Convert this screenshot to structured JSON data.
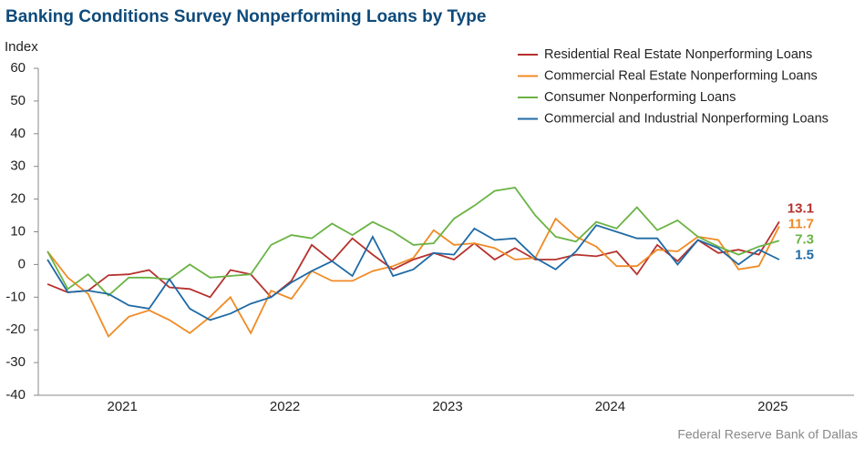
{
  "chart_data": {
    "type": "line",
    "title": "Banking Conditions Survey Nonperforming Loans by Type",
    "y_label": "Index",
    "source": "Federal Reserve Bank of Dallas",
    "xlim": [
      2021,
      2026
    ],
    "xticks": [
      {
        "value": 2021.5,
        "label": "2021"
      },
      {
        "value": 2022.5,
        "label": "2022"
      },
      {
        "value": 2023.5,
        "label": "2023"
      },
      {
        "value": 2024.5,
        "label": "2024"
      },
      {
        "value": 2025.5,
        "label": "2025"
      }
    ],
    "ylim": [
      -40,
      60
    ],
    "yticks": [
      -40,
      -30,
      -20,
      -10,
      0,
      10,
      20,
      30,
      40,
      50,
      60
    ],
    "legend": "top-right",
    "x": [
      2021.04,
      2021.165,
      2021.29,
      2021.415,
      2021.54,
      2021.665,
      2021.79,
      2021.915,
      2022.04,
      2022.165,
      2022.29,
      2022.415,
      2022.54,
      2022.665,
      2022.79,
      2022.915,
      2023.04,
      2023.165,
      2023.29,
      2023.415,
      2023.54,
      2023.665,
      2023.79,
      2023.915,
      2024.04,
      2024.165,
      2024.29,
      2024.415,
      2024.54,
      2024.665,
      2024.79,
      2024.915,
      2025.04,
      2025.165,
      2025.29,
      2025.415,
      2025.54
    ],
    "series": [
      {
        "name": "Residential Real Estate Nonperforming Loans",
        "color": "#b5312c",
        "values": [
          -6,
          -8.5,
          -8,
          -3.3,
          -3,
          -1.7,
          -7,
          -7.5,
          -10,
          -1.7,
          -3,
          -10,
          -5,
          6,
          1,
          8,
          3,
          -1.5,
          1.5,
          3.5,
          1.5,
          6.5,
          1.5,
          5,
          1.5,
          1.5,
          3,
          2.5,
          4,
          -3,
          6,
          1,
          7.5,
          3.5,
          4.5,
          3,
          13.1
        ]
      },
      {
        "name": "Commercial Real Estate Nonperforming Loans",
        "color": "#f08a24",
        "values": [
          4,
          -4,
          -9,
          -22,
          -16,
          -14,
          -17,
          -21,
          -16,
          -10,
          -21,
          -8,
          -10.5,
          -2,
          -5,
          -5,
          -2,
          -0.5,
          2,
          10.5,
          6,
          6.5,
          5,
          1.5,
          2,
          14,
          8.5,
          5.5,
          -0.5,
          -0.5,
          4.5,
          4,
          8.5,
          7.5,
          -1.5,
          -0.5,
          11.7
        ]
      },
      {
        "name": "Consumer Nonperforming Loans",
        "color": "#6ab344",
        "values": [
          4,
          -7.5,
          -3,
          -9.5,
          -4,
          -4,
          -4.5,
          0,
          -4,
          -3.5,
          -3,
          6,
          9,
          8,
          12.5,
          9,
          13,
          10,
          6,
          6.5,
          14,
          18,
          22.5,
          23.5,
          15,
          8.5,
          7,
          13,
          11,
          17.5,
          10.5,
          13.5,
          8.5,
          5.5,
          3,
          5.5,
          7.3
        ]
      },
      {
        "name": "Commercial and Industrial Nonperforming Loans",
        "color": "#1f6aa5",
        "values": [
          1.5,
          -8.5,
          -8,
          -9,
          -12.5,
          -13.5,
          -4.5,
          -13.5,
          -17,
          -15,
          -12,
          -10,
          -5.5,
          -2,
          1,
          -3.5,
          8.5,
          -3.5,
          -1.5,
          3.5,
          3,
          11,
          7.5,
          8,
          2,
          -1.5,
          4,
          12,
          10,
          8,
          8,
          0,
          7.5,
          5,
          0,
          4.5,
          1.5
        ]
      }
    ]
  }
}
